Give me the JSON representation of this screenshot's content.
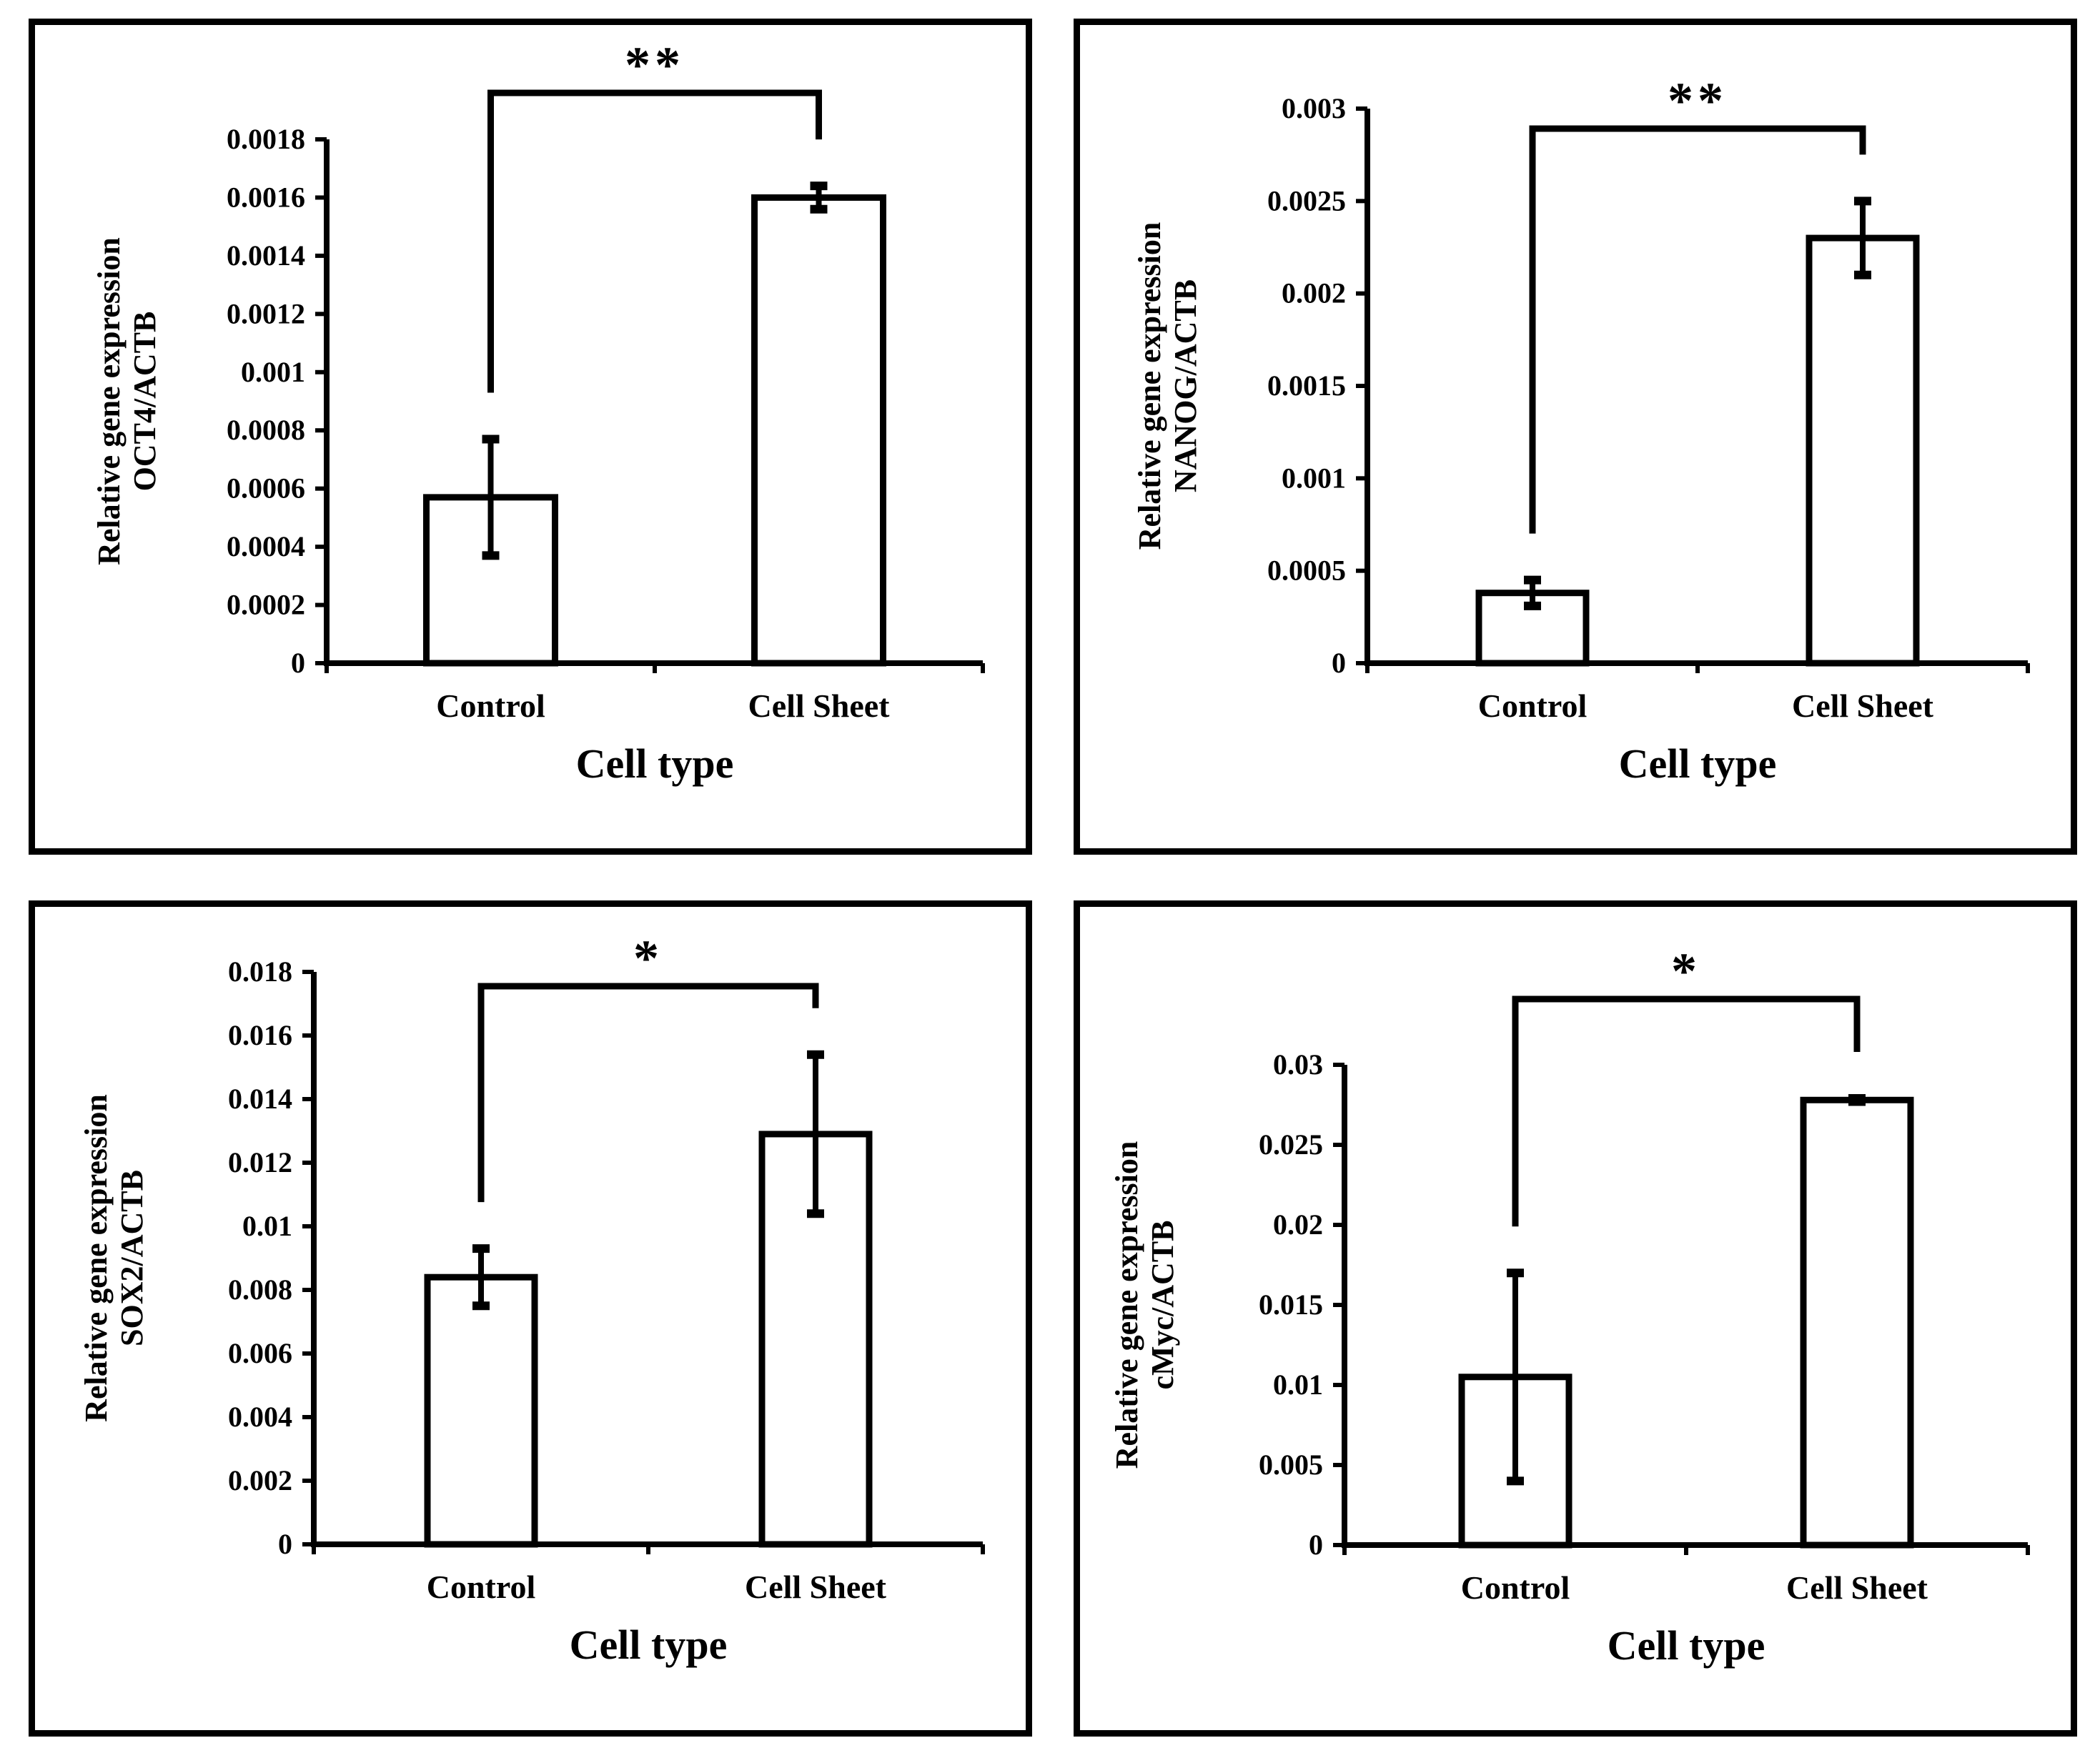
{
  "chart_data": [
    {
      "type": "bar",
      "categories": [
        "Control",
        "Cell Sheet"
      ],
      "values": [
        0.00057,
        0.0016
      ],
      "errors": [
        0.0002,
        4e-05
      ],
      "ylim": [
        0,
        0.0018
      ],
      "yticks": [
        "0",
        "0.0002",
        "0.0004",
        "0.0006",
        "0.0008",
        "0.001",
        "0.0012",
        "0.0014",
        "0.0016",
        "0.0018"
      ],
      "xlabel": "Cell type",
      "ylabel": [
        "Relative gene expression",
        "OCT4/ACTB"
      ],
      "significance": "**",
      "grid": false
    },
    {
      "type": "bar",
      "categories": [
        "Control",
        "Cell Sheet"
      ],
      "values": [
        0.00038,
        0.0023
      ],
      "errors": [
        7e-05,
        0.0002
      ],
      "ylim": [
        0,
        0.003
      ],
      "yticks": [
        "0",
        "0.0005",
        "0.001",
        "0.0015",
        "0.002",
        "0.0025",
        "0.003"
      ],
      "xlabel": "Cell type",
      "ylabel": [
        "Relative gene expression",
        "NANOG/ACTB"
      ],
      "significance": "**",
      "grid": false
    },
    {
      "type": "bar",
      "categories": [
        "Control",
        "Cell Sheet"
      ],
      "values": [
        0.0084,
        0.0129
      ],
      "errors": [
        0.0009,
        0.0025
      ],
      "ylim": [
        0,
        0.018
      ],
      "yticks": [
        "0",
        "0.002",
        "0.004",
        "0.006",
        "0.008",
        "0.01",
        "0.012",
        "0.014",
        "0.016",
        "0.018"
      ],
      "xlabel": "Cell type",
      "ylabel": [
        "Relative gene expression",
        "SOX2/ACTB"
      ],
      "significance": "*",
      "grid": false
    },
    {
      "type": "bar",
      "categories": [
        "Control",
        "Cell Sheet"
      ],
      "values": [
        0.0105,
        0.0278
      ],
      "errors": [
        0.0065,
        0.0001
      ],
      "ylim": [
        0,
        0.03
      ],
      "yticks": [
        "0",
        "0.005",
        "0.01",
        "0.015",
        "0.02",
        "0.025",
        "0.03"
      ],
      "xlabel": "Cell type",
      "ylabel": [
        "Relative gene expression",
        "cMyc/ACTB"
      ],
      "significance": "*",
      "grid": false
    }
  ]
}
